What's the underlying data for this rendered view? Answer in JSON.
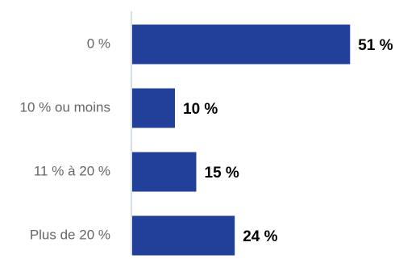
{
  "colors": {
    "bar": "#22409a",
    "axis": "#c9d3e0",
    "category_text": "#666666",
    "value_text": "#000000"
  },
  "chart_data": {
    "type": "bar",
    "orientation": "horizontal",
    "categories": [
      "0 %",
      "10 % ou moins",
      "11 % à 20 %",
      "Plus de 20 %"
    ],
    "values": [
      51,
      10,
      15,
      24
    ],
    "value_labels": [
      "51 %",
      "10 %",
      "15 %",
      "24 %"
    ],
    "unit": "%",
    "xlim": [
      0,
      55
    ],
    "grid": false,
    "legend": "none"
  }
}
